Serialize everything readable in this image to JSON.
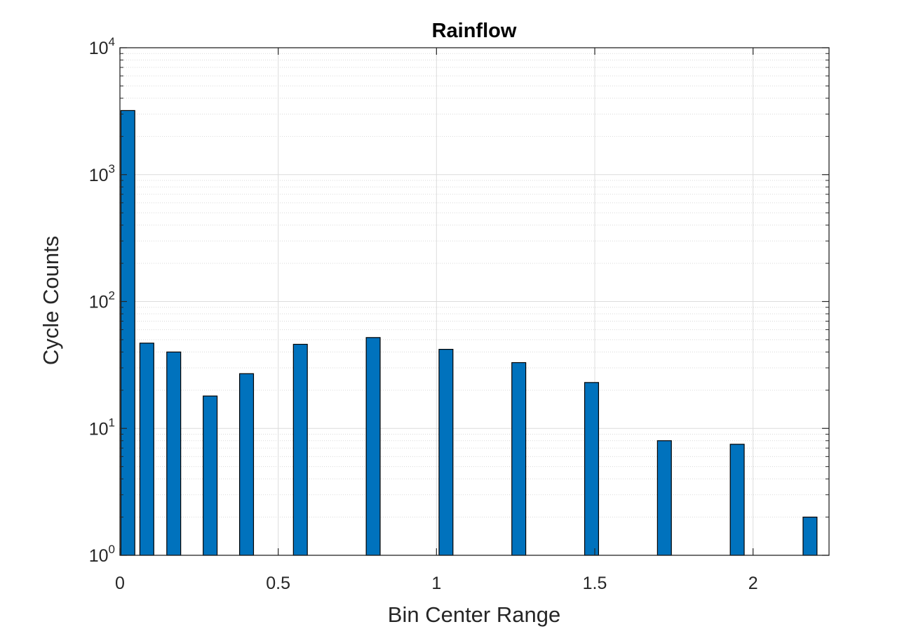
{
  "chart_data": {
    "type": "bar",
    "title": "Rainflow",
    "xlabel": "Bin Center Range",
    "ylabel": "Cycle Counts",
    "xlim": [
      0,
      2.24
    ],
    "ylim": [
      1,
      10000
    ],
    "y_scale": "log",
    "grid": true,
    "minor_grid": true,
    "bar_color": "#0072BD",
    "bar_edge_color": "#000000",
    "bar_width": 0.044,
    "x_ticks": [
      0,
      0.5,
      1,
      1.5,
      2
    ],
    "x_tick_labels": [
      "0",
      "0.5",
      "1",
      "1.5",
      "2"
    ],
    "y_ticks": [
      {
        "value": 1,
        "base": "10",
        "exp": "0"
      },
      {
        "value": 10,
        "base": "10",
        "exp": "1"
      },
      {
        "value": 100,
        "base": "10",
        "exp": "2"
      },
      {
        "value": 1000,
        "base": "10",
        "exp": "3"
      },
      {
        "value": 10000,
        "base": "10",
        "exp": "4"
      }
    ],
    "x": [
      0.025,
      0.085,
      0.17,
      0.285,
      0.4,
      0.57,
      0.8,
      1.03,
      1.26,
      1.49,
      1.72,
      1.95,
      2.18
    ],
    "values": [
      3200,
      47,
      40,
      18,
      27,
      46,
      52,
      42,
      33,
      23,
      8,
      7.5,
      2
    ]
  }
}
